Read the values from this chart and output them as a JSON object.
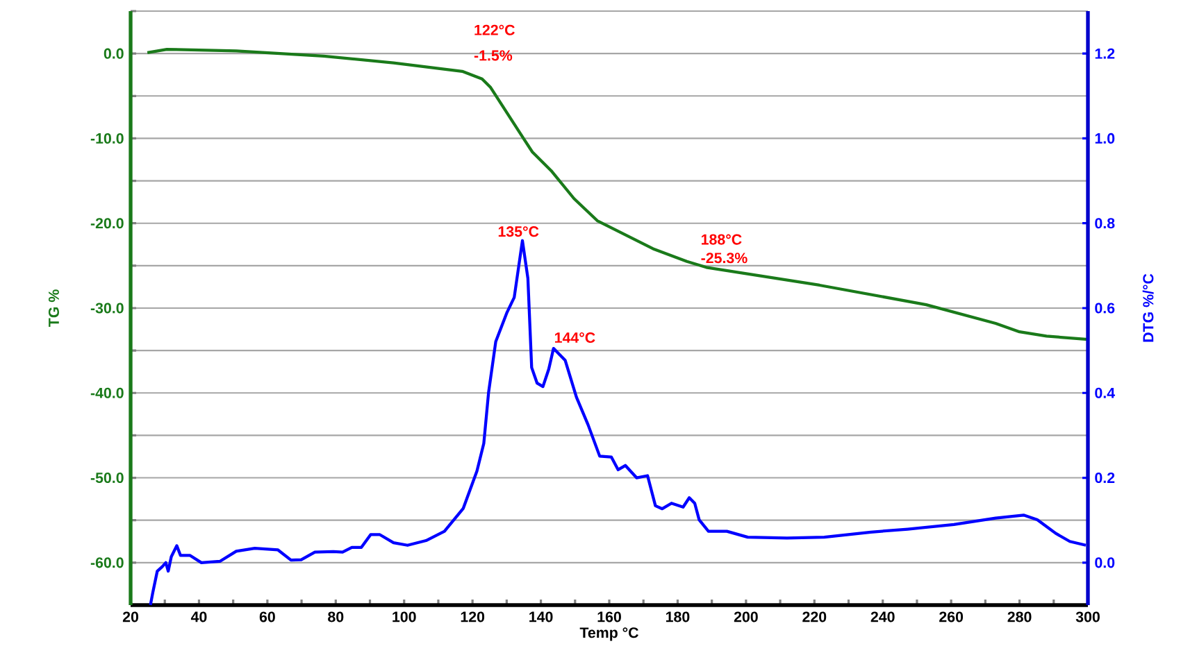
{
  "chart_data": {
    "type": "line",
    "xlabel": "Temp °C",
    "ylabel": "TG %",
    "y2label": "DTG %/°C",
    "grid": "y",
    "xlim": [
      20,
      300
    ],
    "ylim": [
      -65,
      5
    ],
    "y2lim": [
      -0.1,
      1.3
    ],
    "xticks": [
      20,
      {
        "value": 30,
        "label": null
      },
      40,
      {
        "value": 50,
        "label": null
      },
      60,
      {
        "value": 70,
        "label": null
      },
      80,
      {
        "value": 90,
        "label": null
      },
      100,
      {
        "value": 110,
        "label": null
      },
      120,
      {
        "value": 130,
        "label": null
      },
      140,
      {
        "value": 150,
        "label": null
      },
      160,
      {
        "value": 170,
        "label": null
      },
      180,
      {
        "value": 190,
        "label": null
      },
      200,
      {
        "value": 210,
        "label": null
      },
      220,
      {
        "value": 230,
        "label": null
      },
      240,
      {
        "value": 250,
        "label": null
      },
      260,
      {
        "value": 270,
        "label": null
      },
      280,
      {
        "value": 290,
        "label": null
      },
      300
    ],
    "yticks": [
      {
        "value": 5,
        "label": null
      },
      {
        "value": 0,
        "label": "0.0"
      },
      {
        "value": -5,
        "label": null
      },
      {
        "value": -10,
        "label": "-10.0"
      },
      {
        "value": -15,
        "label": null
      },
      {
        "value": -20,
        "label": "-20.0"
      },
      {
        "value": -25,
        "label": null
      },
      {
        "value": -30,
        "label": "-30.0"
      },
      {
        "value": -35,
        "label": null
      },
      {
        "value": -40,
        "label": "-40.0"
      },
      {
        "value": -45,
        "label": null
      },
      {
        "value": -50,
        "label": "-50.0"
      },
      {
        "value": -55,
        "label": null
      },
      {
        "value": -60,
        "label": "-60.0"
      }
    ],
    "y2ticks": [
      {
        "value": 0,
        "label": "0.0"
      },
      0.2,
      0.4,
      0.6,
      0.8,
      {
        "value": 1,
        "label": "1.0"
      },
      1.2
    ],
    "series": [
      {
        "color": "#1a7a1a",
        "axis": "y",
        "x": [
          24.9,
          30.6,
          50.9,
          76.5,
          96.9,
          117,
          122.8,
          125.3,
          134.9,
          137.5,
          143,
          149.7,
          156.5,
          172.8,
          182.7,
          188.4,
          221.5,
          252.7,
          273,
          280,
          287.9,
          300
        ],
        "values": [
          0.1,
          0.5,
          0.3,
          -0.3,
          -1.1,
          -2.1,
          -3.0,
          -4.0,
          -10.0,
          -11.6,
          -13.8,
          -17.1,
          -19.7,
          -23.0,
          -24.5,
          -25.2,
          -27.3,
          -29.6,
          -31.8,
          -32.8,
          -33.3,
          -33.7
        ]
      },
      {
        "color": "#0000ff",
        "axis": "y2",
        "x": [
          25.8,
          26.5,
          27.8,
          29.2,
          30.3,
          31,
          31.9,
          33.5,
          34.6,
          37.4,
          40.7,
          46.1,
          50.9,
          56.3,
          63.1,
          66.9,
          69.9,
          73.9,
          79.3,
          82,
          84.7,
          87.5,
          90.2,
          92.9,
          96.9,
          101,
          106.4,
          111.8,
          117.3,
          121.3,
          123.3,
          124.7,
          126.8,
          130.1,
          132.2,
          134.6,
          136.2,
          137.3,
          138.9,
          140.6,
          142.3,
          143.7,
          147.1,
          150.4,
          153.8,
          157.2,
          160.6,
          162.6,
          164.7,
          168,
          171.2,
          173.5,
          175.5,
          178.2,
          181.6,
          183.4,
          185,
          186.3,
          189,
          194.4,
          200.5,
          212,
          222.9,
          236.5,
          247.3,
          260.8,
          273,
          281.2,
          285.2,
          290.6,
          294.7,
          299.4
        ],
        "values": [
          -0.1,
          -0.07,
          -0.02,
          -0.01,
          0.0,
          -0.02,
          0.014,
          0.04,
          0.017,
          0.017,
          0.0,
          0.003,
          0.027,
          0.034,
          0.03,
          0.006,
          0.007,
          0.025,
          0.026,
          0.025,
          0.036,
          0.036,
          0.066,
          0.066,
          0.047,
          0.041,
          0.052,
          0.074,
          0.128,
          0.216,
          0.281,
          0.401,
          0.521,
          0.59,
          0.625,
          0.759,
          0.67,
          0.46,
          0.423,
          0.415,
          0.456,
          0.505,
          0.477,
          0.39,
          0.325,
          0.251,
          0.249,
          0.219,
          0.229,
          0.2,
          0.205,
          0.134,
          0.127,
          0.14,
          0.131,
          0.153,
          0.14,
          0.101,
          0.074,
          0.074,
          0.06,
          0.058,
          0.06,
          0.072,
          0.079,
          0.09,
          0.105,
          0.112,
          0.101,
          0.069,
          0.05,
          0.041
        ]
      }
    ],
    "annotations": [
      "122°C",
      "-1.5%",
      "135°C",
      "144°C",
      {
        "text": "188°C",
        "x": 188,
        "y": -25.3
      },
      {
        "text": "-25.3%",
        "x": 188,
        "y": -25.3
      }
    ]
  }
}
